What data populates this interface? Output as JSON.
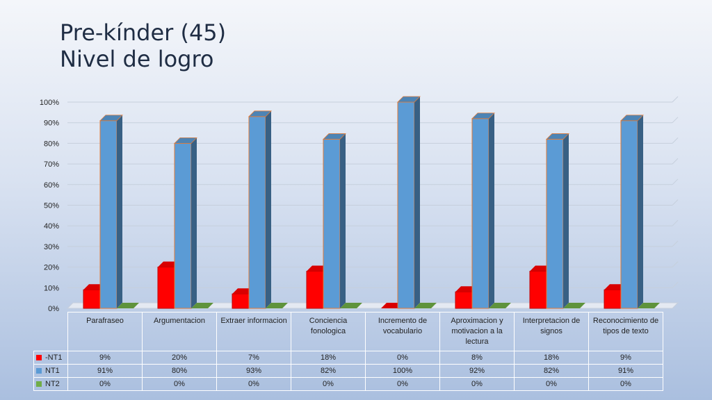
{
  "title_lines": [
    "Pre-kínder (45)",
    "Nivel de logro"
  ],
  "chart_data": {
    "type": "bar",
    "title": "Pre-kínder (45) Nivel de logro",
    "xlabel": "",
    "ylabel": "",
    "ylim": [
      0,
      100
    ],
    "yticks": [
      "0%",
      "10%",
      "20%",
      "30%",
      "40%",
      "50%",
      "60%",
      "70%",
      "80%",
      "90%",
      "100%"
    ],
    "grid": true,
    "legend": "data-table",
    "categories": [
      "Parafraseo",
      "Argumentacion",
      "Extraer informacion",
      "Conciencia fonologica",
      "Incremento de vocabulario",
      "Aproximacion y motivacion a la lectura",
      "Interpretacion de signos",
      "Reconocimiento de tipos de texto"
    ],
    "series": [
      {
        "name": "-NT1",
        "color": "#ff0000",
        "values": [
          9,
          20,
          7,
          18,
          0,
          8,
          18,
          9
        ],
        "labels": [
          "9%",
          "20%",
          "7%",
          "18%",
          "0%",
          "8%",
          "18%",
          "9%"
        ]
      },
      {
        "name": "NT1",
        "color": "#5b9bd5",
        "values": [
          91,
          80,
          93,
          82,
          100,
          92,
          82,
          91
        ],
        "labels": [
          "91%",
          "80%",
          "93%",
          "82%",
          "100%",
          "92%",
          "82%",
          "91%"
        ]
      },
      {
        "name": "NT2",
        "color": "#70ad47",
        "values": [
          0,
          0,
          0,
          0,
          0,
          0,
          0,
          0
        ],
        "labels": [
          "0%",
          "0%",
          "0%",
          "0%",
          "0%",
          "0%",
          "0%",
          "0%"
        ]
      }
    ]
  }
}
